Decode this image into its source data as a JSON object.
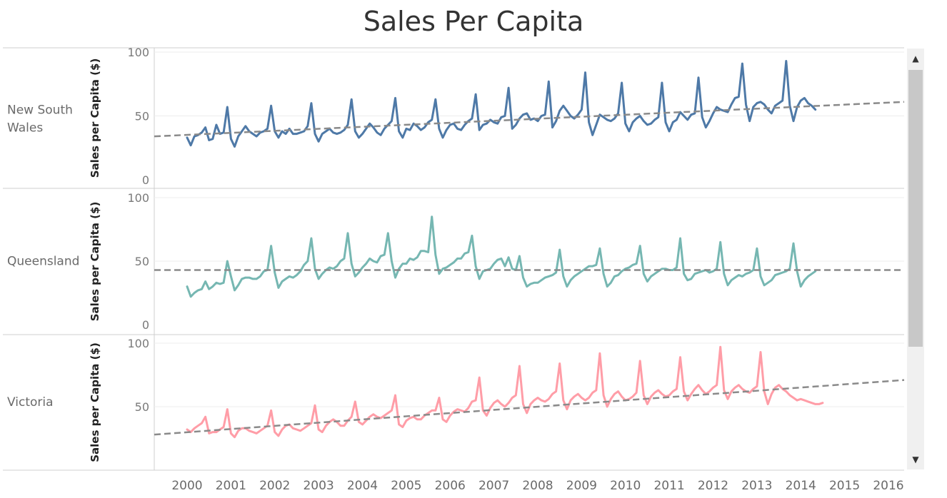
{
  "title": "Sales Per Capita",
  "scrollbar": {
    "up_icon": "chevron-up-icon",
    "down_icon": "chevron-down-icon"
  },
  "chart_data": {
    "type": "line",
    "title": "Sales Per Capita",
    "x_ticks": [
      "2000",
      "2001",
      "2002",
      "2003",
      "2004",
      "2005",
      "2006",
      "2007",
      "2008",
      "2009",
      "2010",
      "2011",
      "2012",
      "2013",
      "2014",
      "2015",
      "2016"
    ],
    "xlim": [
      2000,
      2016
    ],
    "ylabel": "Sales per Capita ($)",
    "grid": "horizontal",
    "panels": [
      {
        "name": "New South Wales",
        "color": "#4e79a7",
        "ylim": [
          0,
          100
        ],
        "y_ticks": [
          0,
          50,
          100
        ],
        "trend": {
          "start": 34,
          "end": 61
        },
        "x_start": 2000.0,
        "x_step": 0.0833333,
        "values": [
          33,
          27,
          34,
          35,
          37,
          41,
          31,
          32,
          43,
          36,
          37,
          57,
          32,
          26,
          34,
          38,
          42,
          38,
          36,
          34,
          37,
          38,
          40,
          58,
          38,
          33,
          38,
          36,
          40,
          36,
          36,
          37,
          38,
          42,
          60,
          36,
          30,
          36,
          38,
          40,
          37,
          36,
          37,
          39,
          43,
          63,
          38,
          33,
          36,
          40,
          44,
          41,
          37,
          35,
          40,
          43,
          46,
          64,
          38,
          33,
          40,
          39,
          44,
          42,
          39,
          41,
          45,
          47,
          63,
          40,
          33,
          39,
          43,
          44,
          40,
          39,
          43,
          46,
          48,
          67,
          39,
          43,
          44,
          47,
          45,
          44,
          49,
          50,
          72,
          40,
          43,
          48,
          51,
          52,
          47,
          48,
          46,
          50,
          51,
          77,
          41,
          46,
          54,
          58,
          54,
          50,
          48,
          51,
          55,
          84,
          45,
          35,
          43,
          51,
          49,
          47,
          46,
          48,
          52,
          76,
          44,
          38,
          45,
          48,
          50,
          46,
          43,
          44,
          47,
          49,
          76,
          45,
          38,
          45,
          47,
          53,
          50,
          47,
          51,
          52,
          80,
          49,
          41,
          46,
          52,
          57,
          55,
          54,
          53,
          59,
          64,
          65,
          91,
          59,
          46,
          57,
          60,
          61,
          59,
          55,
          52,
          58,
          60,
          62,
          93,
          58,
          46,
          57,
          62,
          64,
          60,
          58,
          55
        ]
      },
      {
        "name": "Queensland",
        "color": "#76b7b2",
        "ylim": [
          0,
          100
        ],
        "y_ticks": [
          0,
          50,
          100
        ],
        "trend": {
          "start": 43,
          "end": 43
        },
        "x_start": 2000.0,
        "x_step": 0.0833333,
        "values": [
          30,
          22,
          25,
          27,
          28,
          34,
          28,
          30,
          33,
          32,
          33,
          50,
          38,
          27,
          31,
          36,
          37,
          37,
          36,
          36,
          38,
          42,
          43,
          62,
          41,
          29,
          34,
          36,
          38,
          37,
          39,
          42,
          47,
          50,
          68,
          44,
          36,
          40,
          43,
          45,
          44,
          46,
          50,
          52,
          72,
          48,
          38,
          41,
          45,
          48,
          52,
          50,
          49,
          54,
          55,
          72,
          50,
          37,
          44,
          48,
          48,
          52,
          51,
          53,
          58,
          58,
          57,
          85,
          55,
          40,
          44,
          45,
          47,
          49,
          52,
          52,
          56,
          57,
          70,
          46,
          36,
          42,
          43,
          44,
          48,
          51,
          52,
          46,
          53,
          44,
          43,
          54,
          37,
          30,
          32,
          33,
          33,
          35,
          37,
          38,
          39,
          41,
          59,
          38,
          30,
          35,
          38,
          40,
          42,
          44,
          46,
          46,
          47,
          60,
          40,
          30,
          33,
          38,
          39,
          42,
          44,
          45,
          47,
          48,
          62,
          40,
          34,
          38,
          40,
          42,
          44,
          44,
          43,
          43,
          45,
          68,
          40,
          35,
          36,
          40,
          41,
          42,
          43,
          41,
          42,
          44,
          65,
          40,
          31,
          35,
          37,
          39,
          38,
          40,
          41,
          43,
          60,
          38,
          31,
          33,
          35,
          39,
          40,
          41,
          42,
          44,
          64,
          42,
          30,
          35,
          38,
          40,
          42
        ]
      },
      {
        "name": "Victoria",
        "color": "#ff9da7",
        "ylim": [
          0,
          100
        ],
        "y_ticks": [
          50,
          100
        ],
        "trend": {
          "start": 28,
          "end": 71
        },
        "x_start": 2000.0,
        "x_step": 0.0833333,
        "values": [
          32,
          30,
          33,
          35,
          37,
          42,
          29,
          30,
          30,
          32,
          34,
          48,
          29,
          26,
          31,
          33,
          33,
          31,
          30,
          29,
          31,
          33,
          35,
          47,
          30,
          27,
          32,
          35,
          36,
          33,
          32,
          31,
          33,
          35,
          37,
          51,
          32,
          30,
          35,
          38,
          40,
          38,
          35,
          35,
          39,
          42,
          54,
          38,
          36,
          39,
          42,
          44,
          42,
          41,
          43,
          45,
          47,
          59,
          36,
          34,
          39,
          41,
          42,
          40,
          40,
          43,
          45,
          47,
          47,
          57,
          40,
          38,
          43,
          46,
          48,
          47,
          46,
          49,
          54,
          55,
          73,
          47,
          43,
          49,
          53,
          55,
          52,
          50,
          53,
          57,
          59,
          82,
          52,
          45,
          52,
          55,
          57,
          55,
          54,
          56,
          60,
          62,
          84,
          55,
          48,
          55,
          58,
          60,
          57,
          55,
          57,
          61,
          63,
          92,
          59,
          50,
          56,
          60,
          62,
          58,
          55,
          56,
          58,
          61,
          86,
          59,
          52,
          58,
          61,
          63,
          60,
          58,
          59,
          62,
          64,
          89,
          62,
          55,
          60,
          64,
          67,
          63,
          60,
          62,
          65,
          67,
          97,
          63,
          56,
          62,
          65,
          67,
          64,
          62,
          61,
          64,
          66,
          93,
          62,
          52,
          60,
          65,
          67,
          64,
          62,
          59,
          57,
          55,
          56,
          55,
          54,
          53,
          52,
          52,
          53
        ]
      }
    ]
  }
}
